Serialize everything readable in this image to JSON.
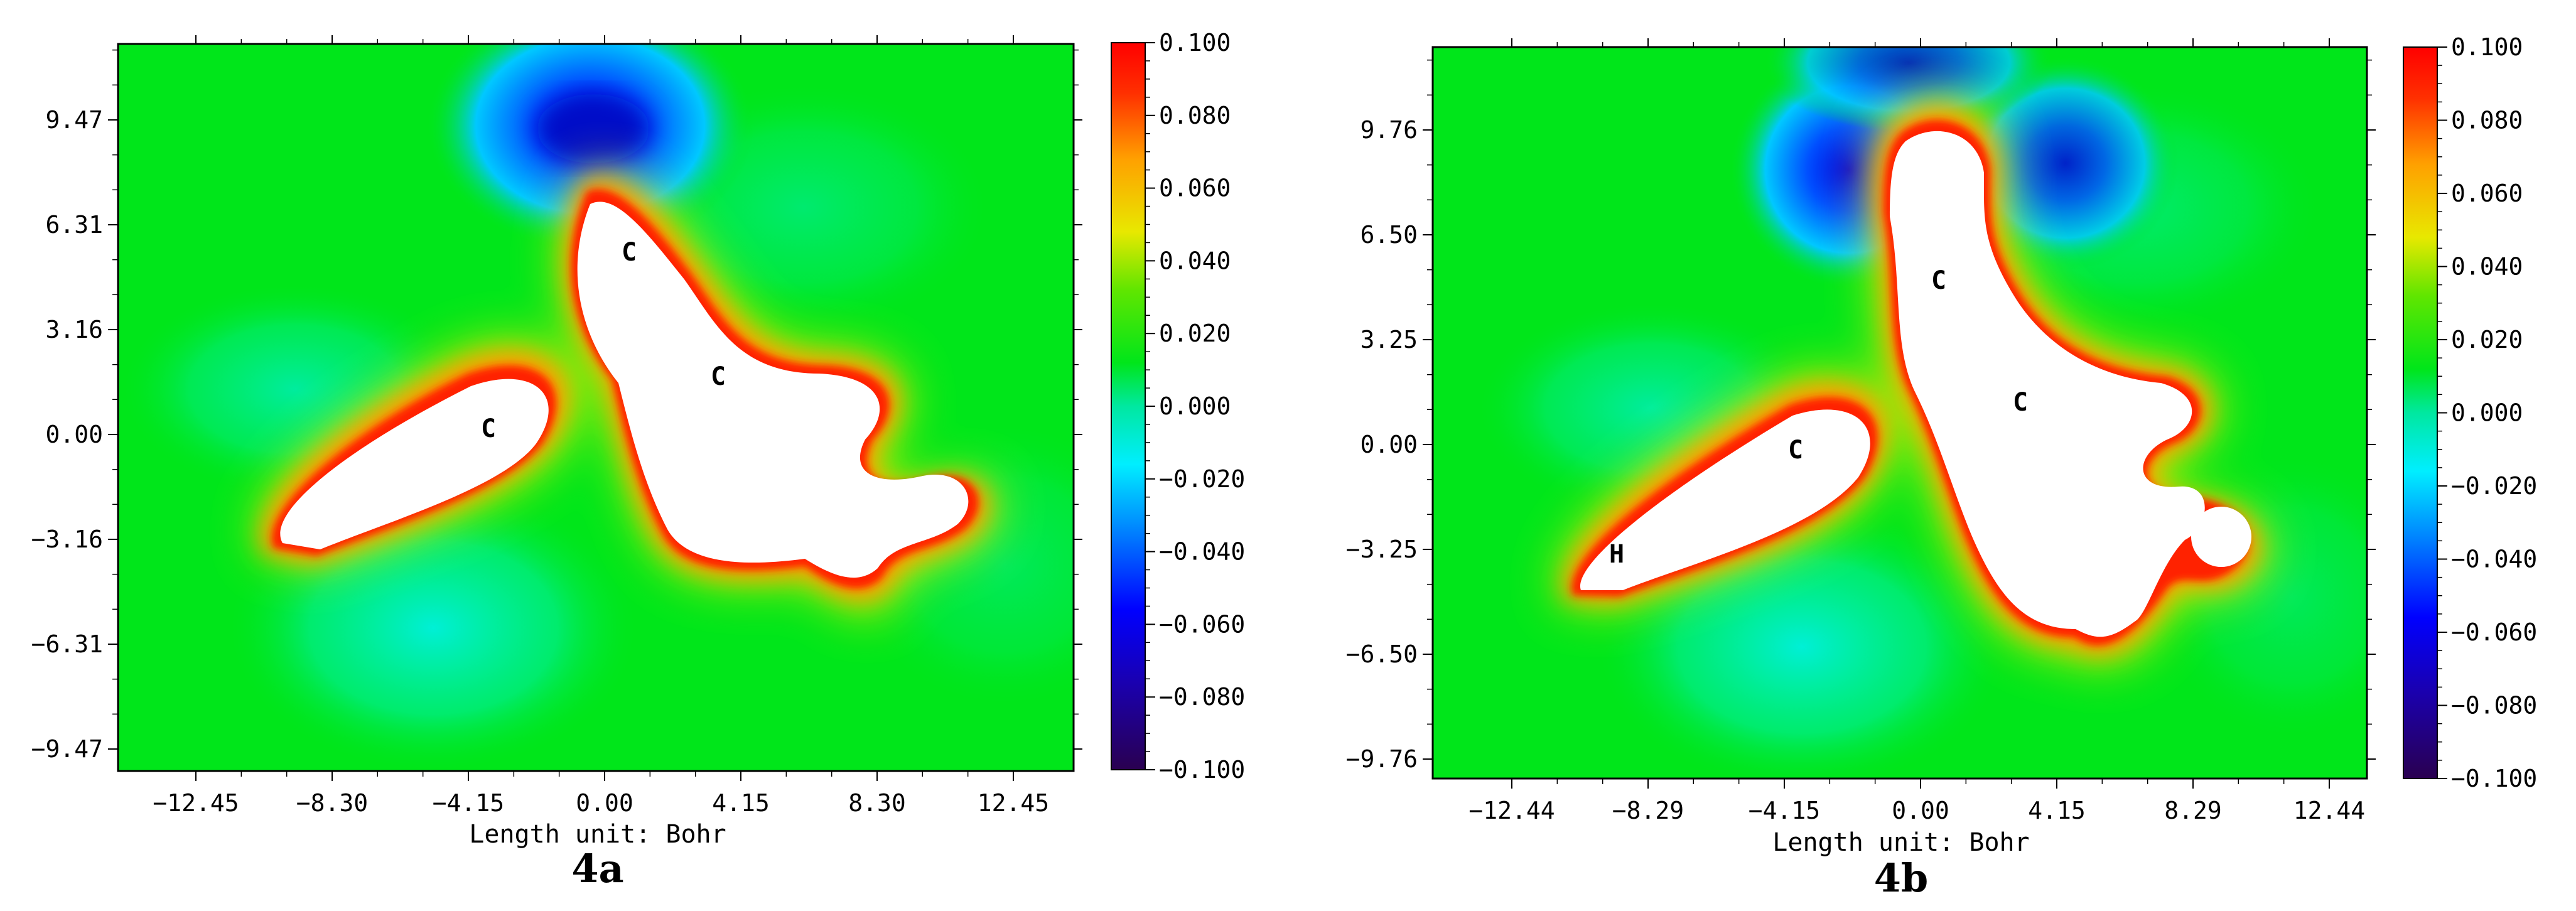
{
  "chart_data": [
    {
      "type": "heatmap",
      "caption": "4a",
      "xlabel": "Length unit: Bohr",
      "x_ticks": [
        "−12.45",
        "−8.30",
        "−4.15",
        "0.00",
        "4.15",
        "8.30",
        "12.45"
      ],
      "y_ticks": [
        "9.47",
        "6.31",
        "3.16",
        "0.00",
        "−3.16",
        "−6.31",
        "−9.47"
      ],
      "colorbar": {
        "min": -0.1,
        "max": 0.1,
        "ticks": [
          "0.100",
          "0.080",
          "0.060",
          "0.040",
          "0.020",
          "0.000",
          "−0.020",
          "−0.040",
          "−0.060",
          "−0.080",
          "−0.100"
        ]
      },
      "atom_labels": [
        "C",
        "C",
        "C"
      ]
    },
    {
      "type": "heatmap",
      "caption": "4b",
      "xlabel": "Length unit: Bohr",
      "x_ticks": [
        "−12.44",
        "−8.29",
        "−4.15",
        "0.00",
        "4.15",
        "8.29",
        "12.44"
      ],
      "y_ticks": [
        "9.76",
        "6.50",
        "3.25",
        "0.00",
        "−3.25",
        "−6.50",
        "−9.76"
      ],
      "colorbar": {
        "min": -0.1,
        "max": 0.1,
        "ticks": [
          "0.100",
          "0.080",
          "0.060",
          "0.040",
          "0.020",
          "0.000",
          "−0.020",
          "−0.040",
          "−0.060",
          "−0.080",
          "−0.100"
        ]
      },
      "atom_labels": [
        "C",
        "C",
        "C",
        "H"
      ]
    }
  ],
  "colors": {
    "background_field": "#00e61a",
    "scale": [
      "#2a0050",
      "#0000d8",
      "#0060ff",
      "#00e8ff",
      "#00e61a",
      "#39e600",
      "#f2e600",
      "#ff9900",
      "#ff0000"
    ]
  }
}
